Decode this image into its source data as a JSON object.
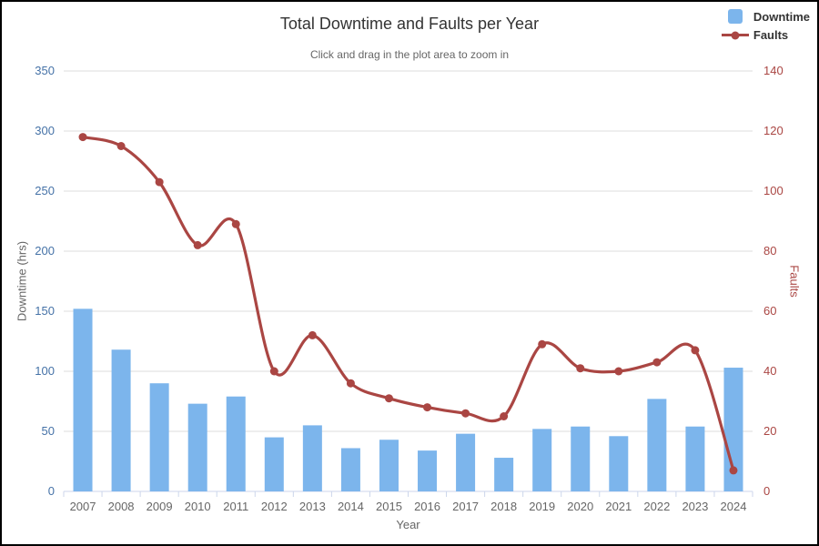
{
  "chart": {
    "title": "Total Downtime and Faults per Year",
    "subtitle": "Click and drag in the plot area to zoom in"
  },
  "legend": {
    "position": "top-right",
    "items": [
      {
        "label": "Downtime",
        "marker": "square",
        "color": "#7CB5EC"
      },
      {
        "label": "Faults",
        "marker": "line-dot",
        "color": "#AA4643"
      }
    ]
  },
  "chart_data": {
    "type": "combo",
    "title": "Total Downtime and Faults per Year",
    "subtitle": "Click and drag in the plot area to zoom in",
    "xlabel": "Year",
    "grid": true,
    "legend_position": "top-right",
    "categories": [
      "2007",
      "2008",
      "2009",
      "2010",
      "2011",
      "2012",
      "2013",
      "2014",
      "2015",
      "2016",
      "2017",
      "2018",
      "2019",
      "2020",
      "2021",
      "2022",
      "2023",
      "2024"
    ],
    "series": [
      {
        "name": "Downtime",
        "type": "bar",
        "axis": "left",
        "color": "#7CB5EC",
        "values": [
          152,
          118,
          90,
          73,
          79,
          45,
          55,
          36,
          43,
          34,
          48,
          28,
          52,
          54,
          46,
          77,
          54,
          103
        ]
      },
      {
        "name": "Faults",
        "type": "line",
        "axis": "right",
        "color": "#AA4643",
        "values": [
          118,
          115,
          103,
          82,
          89,
          40,
          52,
          36,
          31,
          28,
          26,
          25,
          49,
          41,
          40,
          43,
          47,
          7
        ]
      }
    ],
    "y_left": {
      "label": "Downtime (hrs)",
      "min": 0,
      "max": 350,
      "tick_interval": 50,
      "label_color": "#4572A7",
      "title_color": "#666666"
    },
    "y_right": {
      "label": "Faults",
      "min": 0,
      "max": 140,
      "tick_interval": 20,
      "label_color": "#AA4643",
      "title_color": "#AA4643"
    },
    "colors": {
      "grid_line": "#DDDDDD",
      "axis_line": "#CCD6EB",
      "x_label": "#666666",
      "title": "#333333",
      "subtitle": "#666666"
    }
  }
}
